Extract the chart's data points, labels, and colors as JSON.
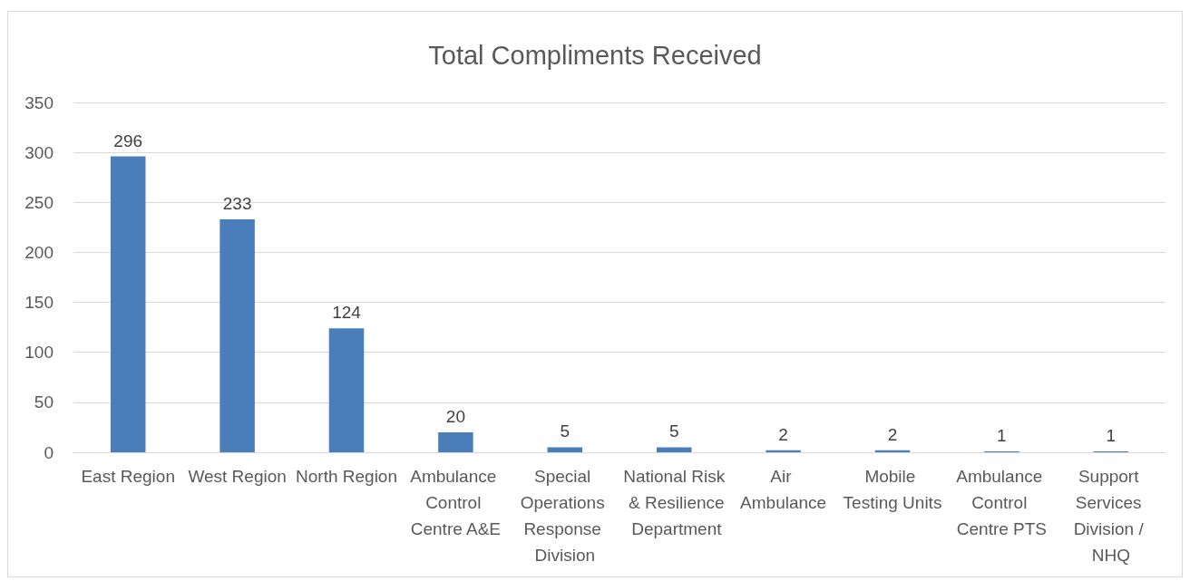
{
  "chart_data": {
    "type": "bar",
    "title": "Total Compliments Received",
    "categories": [
      "East Region",
      "West Region",
      "North Region",
      "Ambulance Control Centre A&E",
      "Special Operations Response Division",
      "National Risk & Resilience Department",
      "Air Ambulance",
      "Mobile Testing Units",
      "Ambulance Control Centre PTS",
      "Support Services Division / NHQ"
    ],
    "values": [
      296,
      233,
      124,
      20,
      5,
      5,
      2,
      2,
      1,
      1
    ],
    "color": "#4a7ebb",
    "ylim": [
      0,
      350
    ],
    "yticks": [
      0,
      50,
      100,
      150,
      200,
      250,
      300,
      350
    ],
    "grid": "y",
    "data_labels": true
  }
}
